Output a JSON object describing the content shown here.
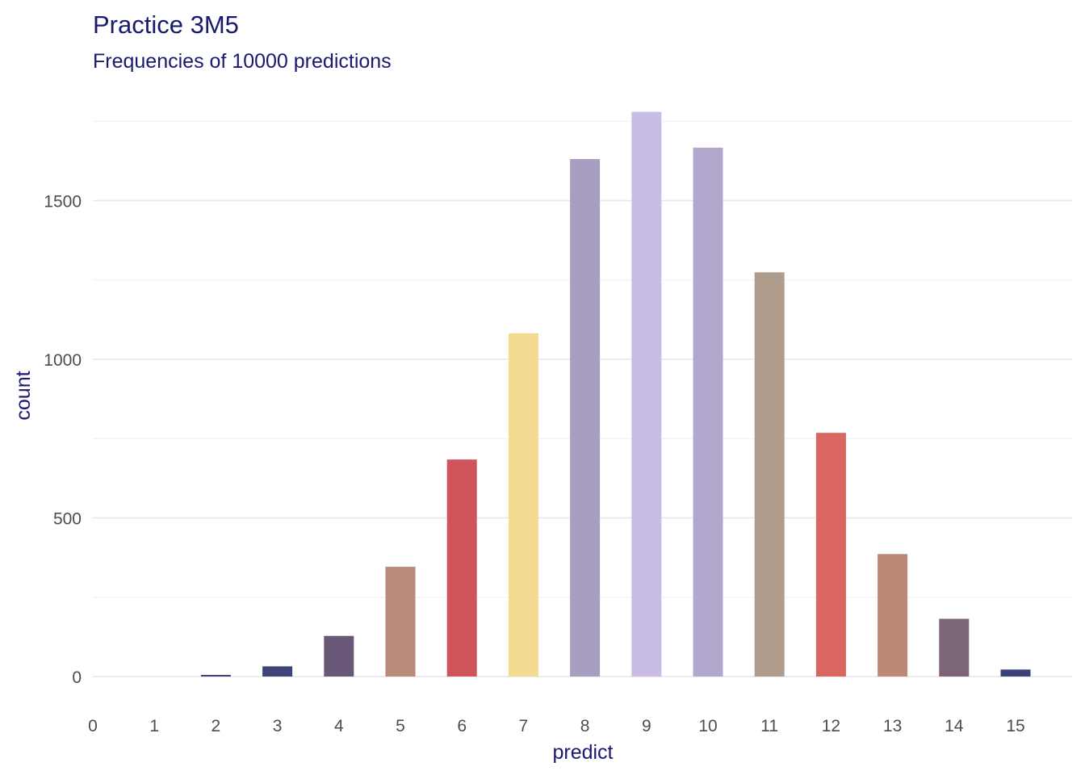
{
  "chart_data": {
    "type": "bar",
    "title": "Practice 3M5",
    "subtitle": "Frequencies of 10000 predictions",
    "xlabel": "predict",
    "ylabel": "count",
    "x_ticks": [
      "0",
      "1",
      "2",
      "3",
      "4",
      "5",
      "6",
      "7",
      "8",
      "9",
      "10",
      "11",
      "12",
      "13",
      "14",
      "15"
    ],
    "y_ticks": [
      0,
      500,
      1000,
      1500
    ],
    "ylim": [
      0,
      1800
    ],
    "xlim": [
      0,
      15.5
    ],
    "grid": true,
    "legend": "none",
    "bars": [
      {
        "x": 2,
        "count": 5,
        "color": "#3b3f7a"
      },
      {
        "x": 3,
        "count": 32,
        "color": "#3f4477"
      },
      {
        "x": 4,
        "count": 128,
        "color": "#6a5878"
      },
      {
        "x": 5,
        "count": 346,
        "color": "#b98b7a"
      },
      {
        "x": 6,
        "count": 684,
        "color": "#d0545c"
      },
      {
        "x": 7,
        "count": 1082,
        "color": "#f4db91"
      },
      {
        "x": 8,
        "count": 1631,
        "color": "#a89ec1"
      },
      {
        "x": 9,
        "count": 1780,
        "color": "#c9bde6"
      },
      {
        "x": 10,
        "count": 1667,
        "color": "#b2a7cc"
      },
      {
        "x": 11,
        "count": 1274,
        "color": "#af9c8c"
      },
      {
        "x": 12,
        "count": 768,
        "color": "#d96660"
      },
      {
        "x": 13,
        "count": 386,
        "color": "#be8878"
      },
      {
        "x": 14,
        "count": 182,
        "color": "#7c6577"
      },
      {
        "x": 15,
        "count": 22,
        "color": "#3b4275"
      }
    ]
  }
}
